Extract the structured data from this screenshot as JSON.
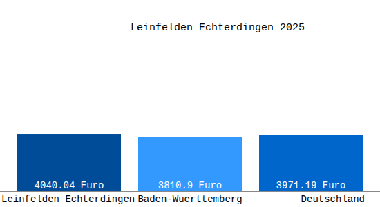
{
  "chart_data": {
    "type": "bar",
    "title": "Leinfelden Echterdingen 2025",
    "categories": [
      "Leinfelden Echterdingen",
      "Baden-Wuerttemberg",
      "Deutschland"
    ],
    "values": [
      4040.04,
      3810.9,
      3971.19
    ],
    "value_labels": [
      "4040.04 Euro",
      "3810.9 Euro",
      "3971.19 Euro"
    ],
    "colors": [
      "#004c99",
      "#3399ff",
      "#0066cc"
    ],
    "ylim": [
      0,
      13000
    ],
    "yticks": [],
    "tick_labels": "x",
    "data_labels": true,
    "grid": false
  }
}
